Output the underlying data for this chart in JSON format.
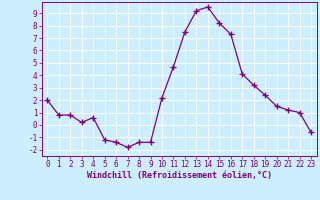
{
  "x": [
    0,
    1,
    2,
    3,
    4,
    5,
    6,
    7,
    8,
    9,
    10,
    11,
    12,
    13,
    14,
    15,
    16,
    17,
    18,
    19,
    20,
    21,
    22,
    23
  ],
  "y": [
    2,
    0.8,
    0.8,
    0.2,
    0.6,
    -1.2,
    -1.4,
    -1.8,
    -1.4,
    -1.4,
    2.2,
    4.7,
    7.5,
    9.2,
    9.5,
    8.2,
    7.3,
    4.1,
    3.2,
    2.4,
    1.5,
    1.2,
    1.0,
    -0.6
  ],
  "line_color": "#800080",
  "marker": "D",
  "marker_size": 2.5,
  "bg_color": "#cceeff",
  "grid_color": "#ffffff",
  "xlabel": "Windchill (Refroidissement éolien,°C)",
  "xlabel_color": "#800080",
  "tick_color": "#800080",
  "ylim": [
    -2.5,
    9.9
  ],
  "xlim": [
    -0.5,
    23.5
  ],
  "yticks": [
    -2,
    -1,
    0,
    1,
    2,
    3,
    4,
    5,
    6,
    7,
    8,
    9
  ],
  "xticks": [
    0,
    1,
    2,
    3,
    4,
    5,
    6,
    7,
    8,
    9,
    10,
    11,
    12,
    13,
    14,
    15,
    16,
    17,
    18,
    19,
    20,
    21,
    22,
    23
  ]
}
